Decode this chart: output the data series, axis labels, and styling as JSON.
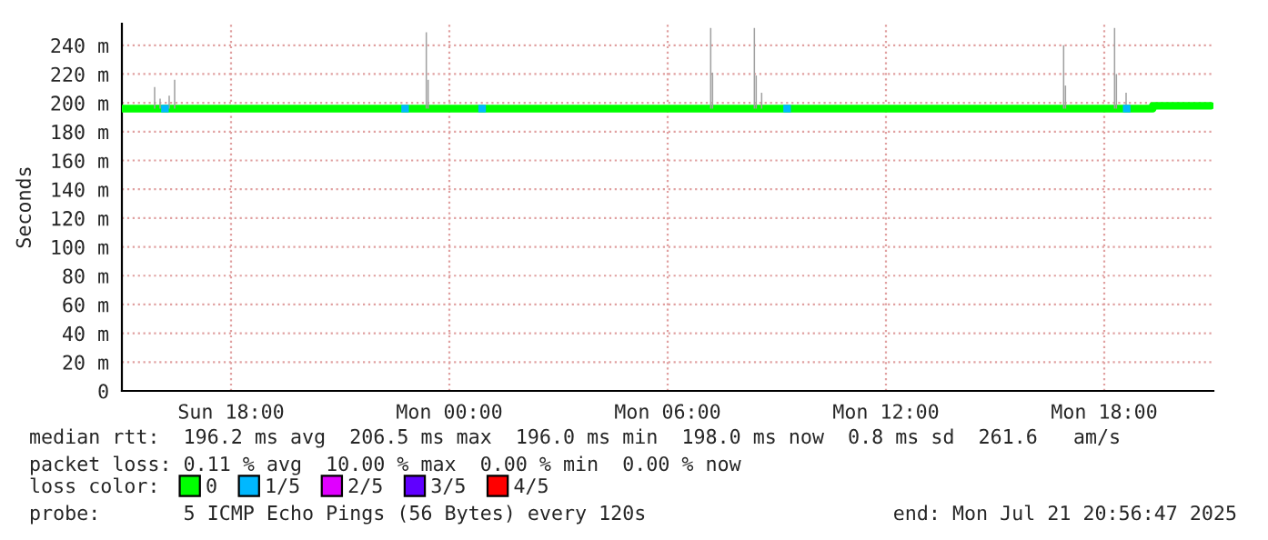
{
  "chart_data": {
    "type": "step",
    "ylabel": "Seconds",
    "xlim": [
      "2025-07-20T15:00",
      "2025-07-21T21:00"
    ],
    "xticks": [
      {
        "value": "2025-07-20T18:00",
        "label": "Sun 18:00"
      },
      {
        "value": "2025-07-21T00:00",
        "label": "Mon 00:00"
      },
      {
        "value": "2025-07-21T06:00",
        "label": "Mon 06:00"
      },
      {
        "value": "2025-07-21T12:00",
        "label": "Mon 12:00"
      },
      {
        "value": "2025-07-21T18:00",
        "label": "Mon 18:00"
      }
    ],
    "ylim": [
      0,
      255
    ],
    "yticks": [
      0,
      {
        "value": 20,
        "label": "20 m"
      },
      {
        "value": 40,
        "label": "40 m"
      },
      {
        "value": 60,
        "label": "60 m"
      },
      {
        "value": 80,
        "label": "80 m"
      },
      {
        "value": 100,
        "label": "100 m"
      },
      {
        "value": 120,
        "label": "120 m"
      },
      {
        "value": 140,
        "label": "140 m"
      },
      {
        "value": 160,
        "label": "160 m"
      },
      {
        "value": 180,
        "label": "180 m"
      },
      {
        "value": 200,
        "label": "200 m"
      },
      {
        "value": 220,
        "label": "220 m"
      },
      {
        "value": 240,
        "label": "240 m"
      }
    ],
    "grid": true,
    "legend": "bottom",
    "legend_title": "loss color:",
    "series": [
      {
        "type": "bar",
        "color": "#a0a0a0",
        "x": [
          "2025-07-20T15:54",
          "2025-07-20T16:03",
          "2025-07-20T16:18",
          "2025-07-20T16:27",
          "2025-07-20T23:22",
          "2025-07-20T23:25",
          "2025-07-21T07:11",
          "2025-07-21T07:14",
          "2025-07-21T08:23",
          "2025-07-21T08:26",
          "2025-07-21T08:35",
          "2025-07-21T16:53",
          "2025-07-21T16:56",
          "2025-07-21T18:17",
          "2025-07-21T18:20",
          "2025-07-21T18:36"
        ],
        "base": [
          196,
          196,
          196,
          196,
          196,
          196,
          196,
          196,
          196,
          196,
          196,
          196,
          196,
          196,
          196,
          196
        ],
        "values": [
          15,
          7,
          9,
          20,
          53,
          20,
          56,
          25,
          56,
          23,
          11,
          44,
          16,
          56,
          24,
          11
        ]
      },
      {
        "name": "0",
        "color": "#00ff00",
        "x": [
          "2025-07-20T15:00",
          "2025-07-21T19:15",
          "2025-07-21T19:20",
          "2025-07-21T20:56"
        ],
        "values": [
          196,
          196,
          198,
          198
        ]
      },
      {
        "type": "scatter",
        "name": "1/5",
        "color": "#00b8ff",
        "marker": "square",
        "x": [
          "2025-07-20T16:11",
          "2025-07-20T22:47",
          "2025-07-21T00:54",
          "2025-07-21T09:17",
          "2025-07-21T18:37"
        ],
        "values": [
          196,
          196,
          196,
          196,
          196
        ]
      },
      {
        "type": "scatter",
        "name": "2/5",
        "color": "#e000ff",
        "marker": "square"
      },
      {
        "type": "scatter",
        "name": "3/5",
        "color": "#6000ff",
        "marker": "square"
      },
      {
        "type": "scatter",
        "name": "4/5",
        "color": "#ff0000",
        "marker": "square"
      }
    ],
    "annotations": [
      "median rtt:  196.2 ms avg  206.5 ms max  196.0 ms min  198.0 ms now  0.8 ms sd  261.6   am/s",
      "packet loss: 0.11 % avg  10.00 % max  0.00 % min  0.00 % now",
      "probe:       5 ICMP Echo Pings (56 Bytes) every 120s",
      "end: Mon Jul 21 20:56:47 2025"
    ]
  }
}
